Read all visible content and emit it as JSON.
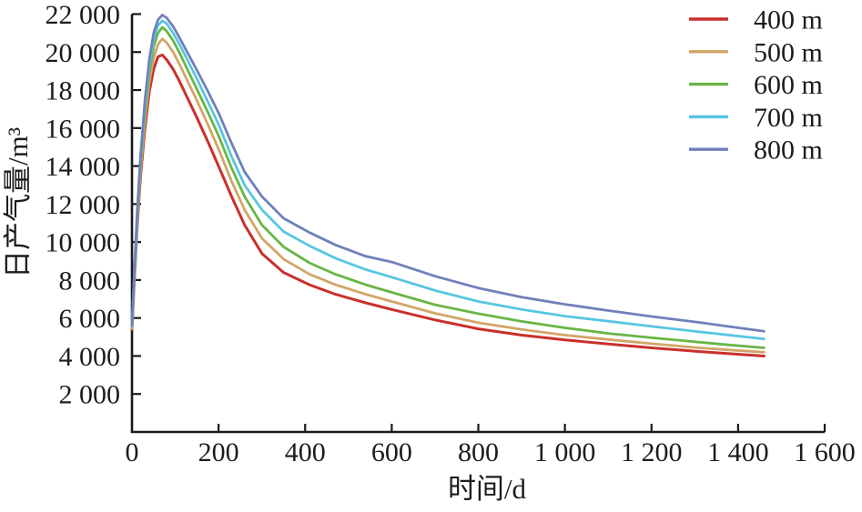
{
  "figure": {
    "background": "#ffffff",
    "axis_color": "#1a1a1a",
    "text_color": "#1c1c1c"
  },
  "chart_data": {
    "type": "line",
    "title": "",
    "xlabel": "时间/d",
    "ylabel": "日产气量/m³",
    "xlim": [
      0,
      1600
    ],
    "ylim": [
      0,
      22000
    ],
    "grid": false,
    "legend_position": "top-right",
    "x_ticks": [
      0,
      200,
      400,
      600,
      800,
      1000,
      1200,
      1400,
      1600
    ],
    "x_tick_labels": [
      "0",
      "200",
      "400",
      "600",
      "800",
      "1 000",
      "1 200",
      "1 400",
      "1 600"
    ],
    "y_ticks": [
      2000,
      4000,
      6000,
      8000,
      10000,
      12000,
      14000,
      16000,
      18000,
      20000,
      22000
    ],
    "y_tick_labels": [
      "2 000",
      "4 000",
      "6 000",
      "8 000",
      "10 000",
      "12 000",
      "14 000",
      "16 000",
      "18 000",
      "20 000",
      "22 000"
    ],
    "x": [
      0,
      5,
      12,
      20,
      30,
      40,
      50,
      60,
      70,
      80,
      95,
      110,
      130,
      150,
      175,
      200,
      230,
      260,
      300,
      350,
      410,
      470,
      540,
      600,
      700,
      800,
      900,
      1000,
      1100,
      1200,
      1300,
      1380,
      1460
    ],
    "series": [
      {
        "name": "400 m",
        "color": "#c9302c",
        "values": [
          5400,
          7800,
          10800,
          13500,
          16000,
          17900,
          19100,
          19750,
          19850,
          19600,
          19100,
          18450,
          17500,
          16550,
          15300,
          14000,
          12400,
          10900,
          9400,
          8400,
          7750,
          7250,
          6800,
          6450,
          5900,
          5430,
          5100,
          4850,
          4630,
          4430,
          4250,
          4120,
          4000
        ]
      },
      {
        "name": "500 m",
        "color": "#d2a567",
        "values": [
          5450,
          7900,
          11000,
          13800,
          16400,
          18400,
          19700,
          20400,
          20700,
          20500,
          20000,
          19350,
          18400,
          17450,
          16200,
          14900,
          13200,
          11700,
          10200,
          9100,
          8300,
          7750,
          7250,
          6870,
          6250,
          5750,
          5400,
          5100,
          4870,
          4650,
          4450,
          4320,
          4200
        ]
      },
      {
        "name": "600 m",
        "color": "#69b545",
        "values": [
          5500,
          8000,
          11200,
          14100,
          16800,
          18900,
          20300,
          21000,
          21300,
          21100,
          20600,
          19950,
          19000,
          18050,
          16850,
          15600,
          13900,
          12400,
          10900,
          9750,
          8900,
          8300,
          7750,
          7350,
          6700,
          6230,
          5820,
          5480,
          5190,
          4960,
          4750,
          4580,
          4430
        ]
      },
      {
        "name": "700 m",
        "color": "#58c6e1",
        "values": [
          5550,
          8100,
          11400,
          14400,
          17200,
          19300,
          20700,
          21400,
          21650,
          21500,
          21000,
          20400,
          19500,
          18600,
          17400,
          16200,
          14500,
          13000,
          11700,
          10550,
          9800,
          9150,
          8550,
          8150,
          7450,
          6870,
          6450,
          6100,
          5830,
          5560,
          5300,
          5100,
          4900
        ]
      },
      {
        "name": "800 m",
        "color": "#7080ba",
        "values": [
          5600,
          8200,
          11600,
          14600,
          17500,
          19600,
          21000,
          21700,
          21950,
          21800,
          21350,
          20750,
          19900,
          19050,
          17950,
          16800,
          15200,
          13700,
          12400,
          11250,
          10500,
          9850,
          9250,
          8950,
          8200,
          7580,
          7100,
          6720,
          6390,
          6080,
          5800,
          5550,
          5300
        ]
      }
    ]
  }
}
